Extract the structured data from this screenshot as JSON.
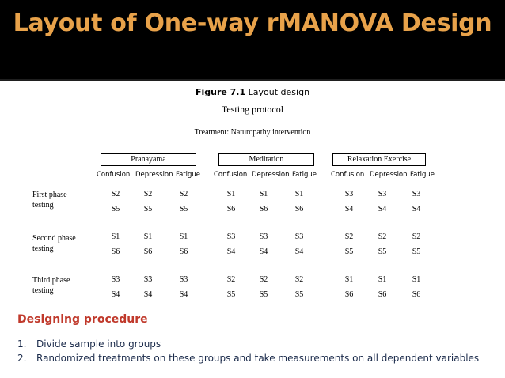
{
  "slide": {
    "title": "Layout of One-way rMANOVA Design"
  },
  "figure": {
    "label": "Figure  7.1",
    "caption": " Layout design",
    "protocol": "Testing protocol",
    "treatment": "Treatment: Naturopathy intervention",
    "groups": [
      "Pranayama",
      "Meditation",
      "Relaxation Exercise"
    ],
    "columns": [
      "Confusion",
      "Depression",
      "Fatigue"
    ],
    "phases": [
      {
        "label": "First phase testing",
        "rows": [
          [
            "S2",
            "S2",
            "S2",
            "S1",
            "S1",
            "S1",
            "S3",
            "S3",
            "S3"
          ],
          [
            "S5",
            "S5",
            "S5",
            "S6",
            "S6",
            "S6",
            "S4",
            "S4",
            "S4"
          ]
        ]
      },
      {
        "label": "Second phase testing",
        "rows": [
          [
            "S1",
            "S1",
            "S1",
            "S3",
            "S3",
            "S3",
            "S2",
            "S2",
            "S2"
          ],
          [
            "S6",
            "S6",
            "S6",
            "S4",
            "S4",
            "S4",
            "S5",
            "S5",
            "S5"
          ]
        ]
      },
      {
        "label": "Third phase testing",
        "rows": [
          [
            "S3",
            "S3",
            "S3",
            "S2",
            "S2",
            "S2",
            "S1",
            "S1",
            "S1"
          ],
          [
            "S4",
            "S4",
            "S4",
            "S5",
            "S5",
            "S5",
            "S6",
            "S6",
            "S6"
          ]
        ]
      }
    ]
  },
  "procedure": {
    "heading": "Designing procedure",
    "items": [
      {
        "num": "1.",
        "text": "Divide sample into groups"
      },
      {
        "num": "2.",
        "text": "Randomized treatments on   these groups and take measurements on all dependent variables"
      }
    ]
  }
}
